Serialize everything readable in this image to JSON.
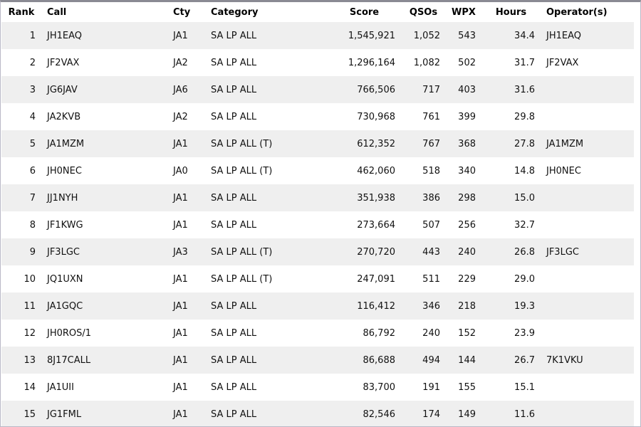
{
  "table": {
    "columns": [
      {
        "key": "rank",
        "label": "Rank",
        "align": "right"
      },
      {
        "key": "call",
        "label": "Call",
        "align": "left"
      },
      {
        "key": "cty",
        "label": "Cty",
        "align": "left"
      },
      {
        "key": "category",
        "label": "Category",
        "align": "left"
      },
      {
        "key": "score",
        "label": "Score",
        "align": "right"
      },
      {
        "key": "qsos",
        "label": "QSOs",
        "align": "right"
      },
      {
        "key": "wpx",
        "label": "WPX",
        "align": "right"
      },
      {
        "key": "hours",
        "label": "Hours",
        "align": "right"
      },
      {
        "key": "operators",
        "label": "Operator(s)",
        "align": "left"
      }
    ],
    "rows": [
      [
        "1",
        "JH1EAQ",
        "JA1",
        "SA LP ALL",
        "1,545,921",
        "1,052",
        "543",
        "34.4",
        "JH1EAQ"
      ],
      [
        "2",
        "JF2VAX",
        "JA2",
        "SA LP ALL",
        "1,296,164",
        "1,082",
        "502",
        "31.7",
        "JF2VAX"
      ],
      [
        "3",
        "JG6JAV",
        "JA6",
        "SA LP ALL",
        "766,506",
        "717",
        "403",
        "31.6",
        ""
      ],
      [
        "4",
        "JA2KVB",
        "JA2",
        "SA LP ALL",
        "730,968",
        "761",
        "399",
        "29.8",
        ""
      ],
      [
        "5",
        "JA1MZM",
        "JA1",
        "SA LP ALL (T)",
        "612,352",
        "767",
        "368",
        "27.8",
        "JA1MZM"
      ],
      [
        "6",
        "JH0NEC",
        "JA0",
        "SA LP ALL (T)",
        "462,060",
        "518",
        "340",
        "14.8",
        "JH0NEC"
      ],
      [
        "7",
        "JJ1NYH",
        "JA1",
        "SA LP ALL",
        "351,938",
        "386",
        "298",
        "15.0",
        ""
      ],
      [
        "8",
        "JF1KWG",
        "JA1",
        "SA LP ALL",
        "273,664",
        "507",
        "256",
        "32.7",
        ""
      ],
      [
        "9",
        "JF3LGC",
        "JA3",
        "SA LP ALL (T)",
        "270,720",
        "443",
        "240",
        "26.8",
        "JF3LGC"
      ],
      [
        "10",
        "JQ1UXN",
        "JA1",
        "SA LP ALL (T)",
        "247,091",
        "511",
        "229",
        "29.0",
        ""
      ],
      [
        "11",
        "JA1GQC",
        "JA1",
        "SA LP ALL",
        "116,412",
        "346",
        "218",
        "19.3",
        ""
      ],
      [
        "12",
        "JH0ROS/1",
        "JA1",
        "SA LP ALL",
        "86,792",
        "240",
        "152",
        "23.9",
        ""
      ],
      [
        "13",
        "8J17CALL",
        "JA1",
        "SA LP ALL",
        "86,688",
        "494",
        "144",
        "26.7",
        "7K1VKU"
      ],
      [
        "14",
        "JA1UII",
        "JA1",
        "SA LP ALL",
        "83,700",
        "191",
        "155",
        "15.1",
        ""
      ],
      [
        "15",
        "JG1FML",
        "JA1",
        "SA LP ALL",
        "82,546",
        "174",
        "149",
        "11.6",
        ""
      ]
    ]
  },
  "colors": {
    "row_alt_background": "#efefef",
    "row_background": "#ffffff",
    "border_top": "#8a8a93",
    "border": "#b9b8c6",
    "text": "#111111"
  }
}
